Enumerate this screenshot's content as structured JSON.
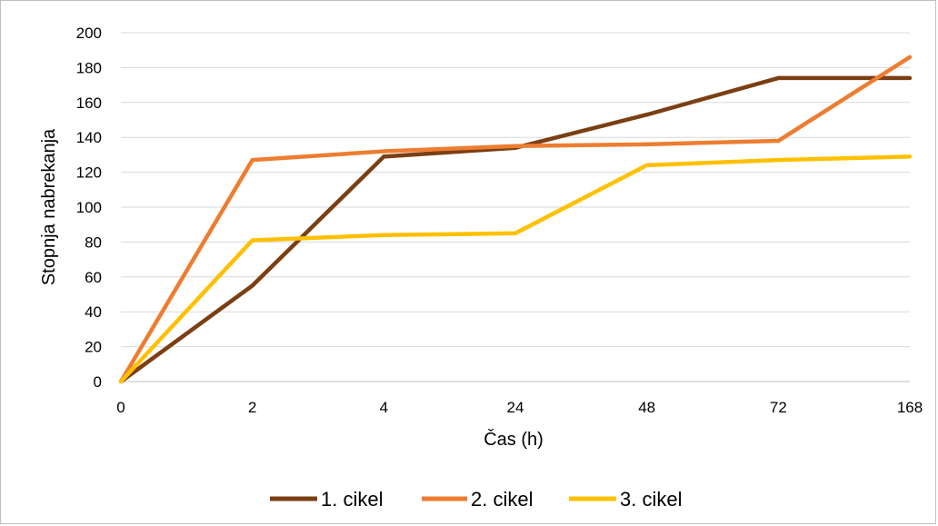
{
  "chart_data": {
    "type": "line",
    "categories": [
      "0",
      "2",
      "4",
      "24",
      "48",
      "72",
      "168"
    ],
    "series": [
      {
        "name": "1. cikel",
        "color": "#7b3f13",
        "values": [
          0,
          55,
          129,
          134,
          153,
          174,
          174
        ]
      },
      {
        "name": "2. cikel",
        "color": "#ed7d31",
        "values": [
          0,
          127,
          132,
          135,
          136,
          138,
          186
        ]
      },
      {
        "name": "3. cikel",
        "color": "#ffc000",
        "values": [
          0,
          81,
          84,
          85,
          124,
          127,
          129
        ]
      }
    ],
    "title": "",
    "xlabel": "Čas (h)",
    "ylabel": "Stopnja nabrekanja",
    "ylim": [
      0,
      200
    ],
    "yticks": [
      "0",
      "20",
      "40",
      "60",
      "80",
      "100",
      "120",
      "140",
      "160",
      "180",
      "200"
    ],
    "grid": true,
    "legend_position": "bottom"
  }
}
